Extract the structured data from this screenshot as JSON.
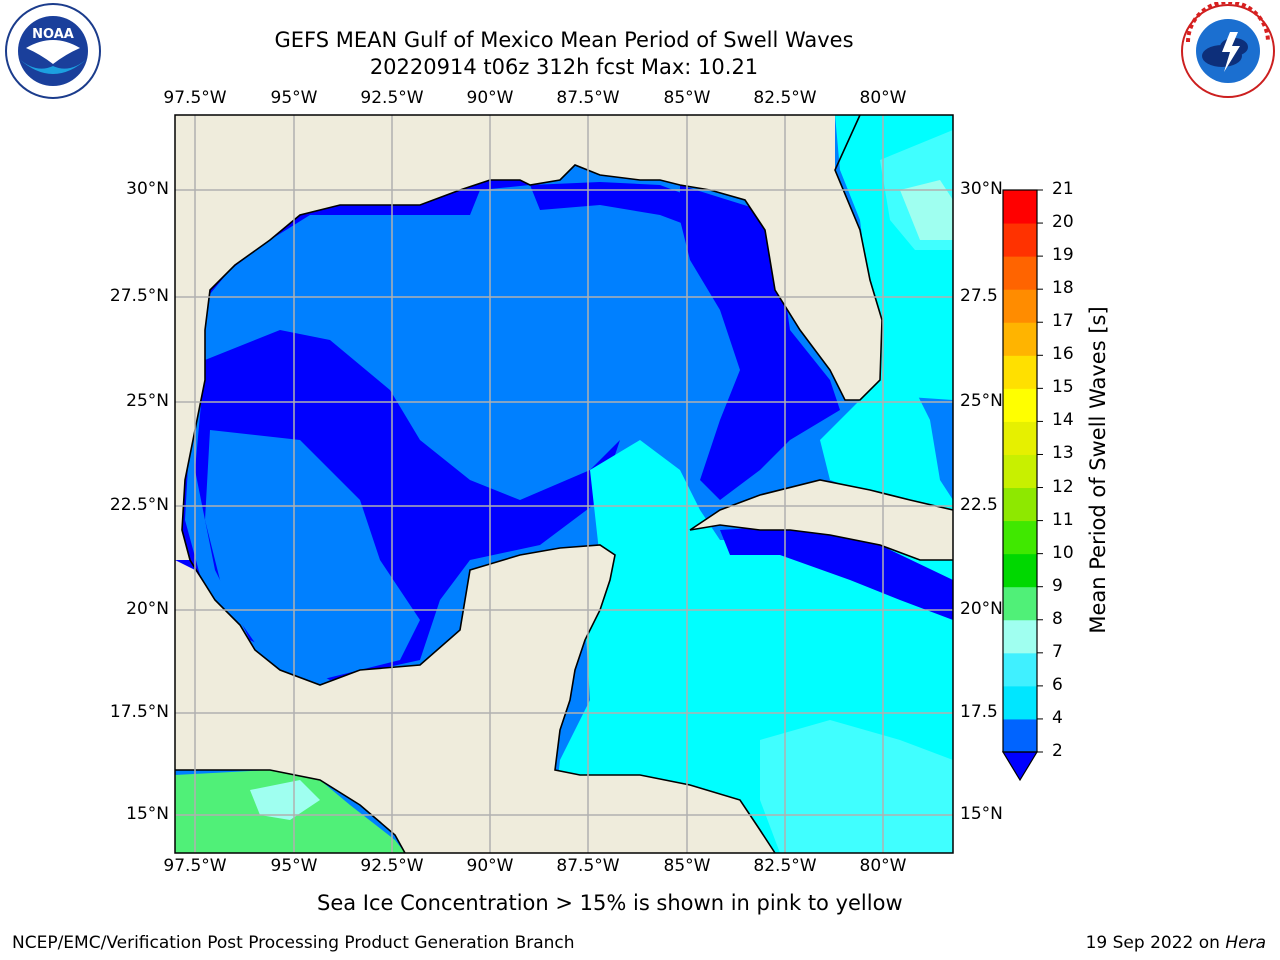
{
  "title": {
    "line1": "GEFS MEAN Gulf of Mexico Mean Period of Swell Waves",
    "line2": "20220914 t06z 312h fcst   Max: 10.21"
  },
  "logos": {
    "left": {
      "icon": "noaa-logo",
      "text": "NOAA"
    },
    "right": {
      "icon": "nws-logo",
      "text": "NATIONAL WEATHER SERVICE"
    }
  },
  "map": {
    "lon_ticks": [
      "97.5°W",
      "95°W",
      "92.5°W",
      "90°W",
      "87.5°W",
      "85°W",
      "82.5°W",
      "80°W"
    ],
    "lat_ticks_left": [
      "30°N",
      "27.5°N",
      "25°N",
      "22.5°N",
      "20°N",
      "17.5°N",
      "15°N"
    ],
    "lat_ticks_right": [
      "30°N",
      "27.5",
      "25°N",
      "22.5",
      "20°N",
      "17.5",
      "15°N"
    ],
    "land_color": "#efecdc",
    "grid_color": "#b0b0b0"
  },
  "colorbar": {
    "label": "Mean Period of Swell Waves [s]",
    "ticks": [
      "2",
      "4",
      "6",
      "7",
      "8",
      "9",
      "10",
      "11",
      "12",
      "13",
      "14",
      "15",
      "16",
      "17",
      "18",
      "19",
      "20",
      "21"
    ],
    "colors": [
      "#0064ff",
      "#00e6ff",
      "#40f0ff",
      "#a0fff0",
      "#50f078",
      "#00d800",
      "#40e800",
      "#8ee800",
      "#c8f000",
      "#e6f000",
      "#ffff00",
      "#ffe000",
      "#ffb400",
      "#ff8c00",
      "#ff6400",
      "#ff3200",
      "#ff0000"
    ],
    "under_color": "#0000ff"
  },
  "note": "Sea Ice Concentration > 15% is shown in pink to yellow",
  "footer": {
    "left": "NCEP/EMC/Verification Post Processing Product Generation Branch",
    "date": "19 Sep 2022 on ",
    "machine": "Hera"
  }
}
